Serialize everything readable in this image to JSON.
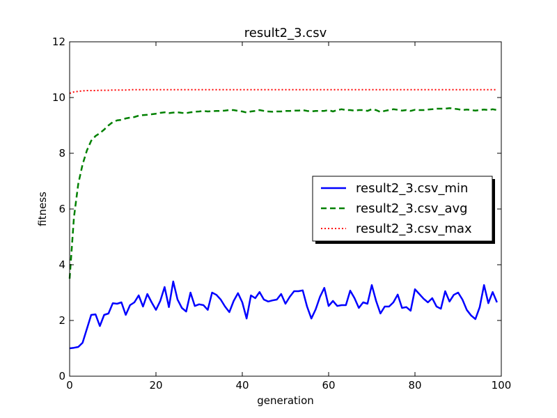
{
  "chart_data": {
    "type": "line",
    "title": "result2_3.csv",
    "xlabel": "generation",
    "ylabel": "fitness",
    "xlim": [
      0,
      100
    ],
    "ylim": [
      0,
      12
    ],
    "xticks": [
      "0",
      "20",
      "40",
      "60",
      "80",
      "100"
    ],
    "yticks": [
      "0",
      "2",
      "4",
      "6",
      "8",
      "10",
      "12"
    ],
    "grid": false,
    "legend_position": "center-right",
    "series": [
      {
        "name": "result2_3.csv_min",
        "color": "#0000ff",
        "style": "solid",
        "values": [
          1.0,
          1.02,
          1.05,
          1.2,
          1.7,
          2.2,
          2.22,
          1.8,
          2.2,
          2.25,
          2.62,
          2.6,
          2.65,
          2.2,
          2.55,
          2.65,
          2.9,
          2.5,
          2.95,
          2.65,
          2.38,
          2.7,
          3.2,
          2.48,
          3.4,
          2.75,
          2.45,
          2.32,
          3.0,
          2.52,
          2.58,
          2.55,
          2.38,
          3.0,
          2.92,
          2.75,
          2.5,
          2.3,
          2.7,
          2.98,
          2.65,
          2.07,
          2.9,
          2.8,
          3.02,
          2.75,
          2.68,
          2.72,
          2.75,
          2.95,
          2.6,
          2.85,
          3.05,
          3.05,
          3.08,
          2.5,
          2.07,
          2.4,
          2.85,
          3.17,
          2.52,
          2.7,
          2.52,
          2.55,
          2.55,
          3.07,
          2.8,
          2.45,
          2.65,
          2.6,
          3.27,
          2.7,
          2.25,
          2.5,
          2.5,
          2.65,
          2.93,
          2.45,
          2.48,
          2.35,
          3.12,
          2.95,
          2.78,
          2.65,
          2.8,
          2.5,
          2.42,
          3.05,
          2.68,
          2.92,
          3.0,
          2.75,
          2.38,
          2.18,
          2.05,
          2.48,
          3.27,
          2.62,
          3.02,
          2.65
        ]
      },
      {
        "name": "result2_3.csv_avg",
        "color": "#008000",
        "style": "dashed",
        "values": [
          3.5,
          5.7,
          6.9,
          7.6,
          8.1,
          8.45,
          8.62,
          8.72,
          8.85,
          9.0,
          9.12,
          9.18,
          9.2,
          9.25,
          9.28,
          9.3,
          9.35,
          9.37,
          9.38,
          9.4,
          9.42,
          9.45,
          9.47,
          9.44,
          9.46,
          9.47,
          9.45,
          9.44,
          9.47,
          9.49,
          9.5,
          9.52,
          9.5,
          9.51,
          9.52,
          9.52,
          9.53,
          9.55,
          9.55,
          9.52,
          9.5,
          9.46,
          9.5,
          9.52,
          9.55,
          9.52,
          9.5,
          9.49,
          9.5,
          9.5,
          9.52,
          9.52,
          9.53,
          9.53,
          9.55,
          9.52,
          9.5,
          9.52,
          9.52,
          9.52,
          9.55,
          9.5,
          9.55,
          9.58,
          9.55,
          9.55,
          9.53,
          9.55,
          9.55,
          9.52,
          9.58,
          9.55,
          9.48,
          9.52,
          9.55,
          9.58,
          9.56,
          9.53,
          9.55,
          9.52,
          9.56,
          9.55,
          9.55,
          9.57,
          9.58,
          9.6,
          9.6,
          9.6,
          9.62,
          9.6,
          9.58,
          9.55,
          9.57,
          9.55,
          9.53,
          9.55,
          9.57,
          9.55,
          9.58,
          9.55
        ]
      },
      {
        "name": "result2_3.csv_max",
        "color": "#ff0000",
        "style": "dotted",
        "values": [
          10.15,
          10.2,
          10.22,
          10.24,
          10.25,
          10.25,
          10.25,
          10.26,
          10.26,
          10.26,
          10.27,
          10.27,
          10.27,
          10.27,
          10.28,
          10.28,
          10.28,
          10.28,
          10.28,
          10.28,
          10.28,
          10.28,
          10.28,
          10.28,
          10.28,
          10.28,
          10.28,
          10.28,
          10.28,
          10.28,
          10.28,
          10.28,
          10.28,
          10.28,
          10.28,
          10.28,
          10.28,
          10.28,
          10.28,
          10.28,
          10.28,
          10.28,
          10.28,
          10.28,
          10.28,
          10.28,
          10.28,
          10.28,
          10.28,
          10.28,
          10.28,
          10.28,
          10.28,
          10.28,
          10.28,
          10.28,
          10.28,
          10.28,
          10.28,
          10.28,
          10.28,
          10.28,
          10.28,
          10.28,
          10.28,
          10.28,
          10.28,
          10.28,
          10.28,
          10.28,
          10.28,
          10.28,
          10.28,
          10.28,
          10.28,
          10.28,
          10.28,
          10.28,
          10.28,
          10.28,
          10.28,
          10.28,
          10.28,
          10.28,
          10.28,
          10.28,
          10.28,
          10.28,
          10.28,
          10.28,
          10.28,
          10.28,
          10.28,
          10.28,
          10.28,
          10.28,
          10.28,
          10.28,
          10.28,
          10.28
        ]
      }
    ]
  }
}
